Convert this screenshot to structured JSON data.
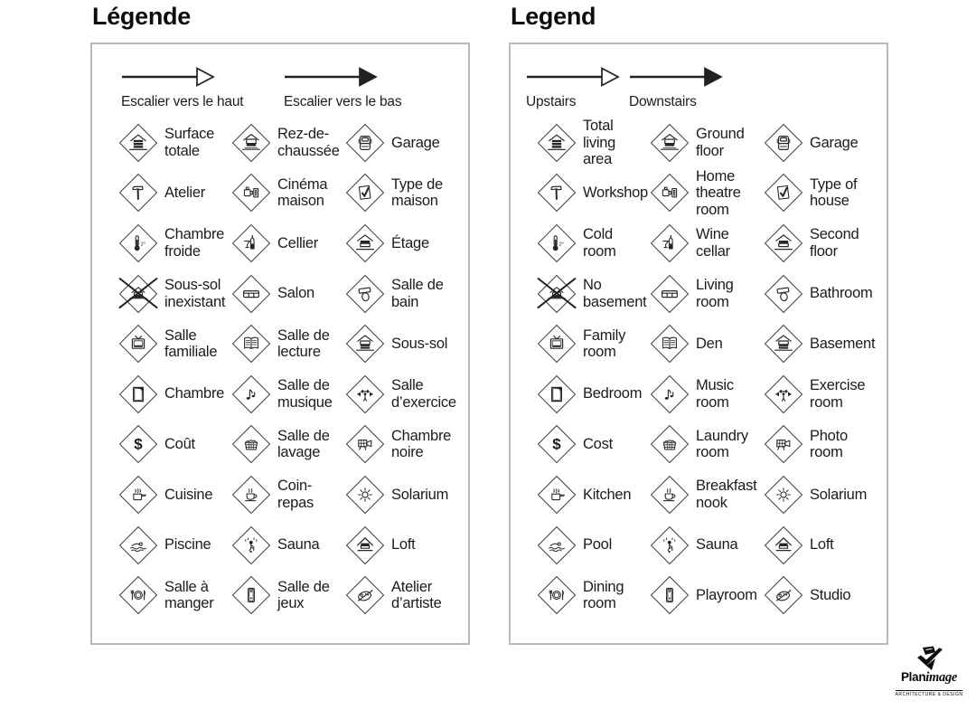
{
  "panels": [
    {
      "id": "french",
      "title": "Légende",
      "arrows": [
        {
          "label": "Escalier vers le haut",
          "style": "hollow"
        },
        {
          "label": "Escalier vers le bas",
          "style": "filled"
        }
      ],
      "items": [
        {
          "icon": "total-living-area",
          "label": "Surface\ntotale"
        },
        {
          "icon": "ground-floor",
          "label": "Rez-de-\nchaussée"
        },
        {
          "icon": "garage",
          "label": "Garage"
        },
        {
          "icon": "workshop",
          "label": "Atelier"
        },
        {
          "icon": "home-theatre",
          "label": "Cinéma\nmaison"
        },
        {
          "icon": "type-of-house",
          "label": "Type de\nmaison"
        },
        {
          "icon": "cold-room",
          "label": "Chambre\nfroide"
        },
        {
          "icon": "wine-cellar",
          "label": "Cellier"
        },
        {
          "icon": "second-floor",
          "label": "Étage"
        },
        {
          "icon": "no-basement",
          "label": "Sous-sol\ninexistant"
        },
        {
          "icon": "living-room",
          "label": "Salon"
        },
        {
          "icon": "bathroom",
          "label": "Salle de\nbain"
        },
        {
          "icon": "family-room",
          "label": "Salle\nfamiliale"
        },
        {
          "icon": "den",
          "label": "Salle de\nlecture"
        },
        {
          "icon": "basement",
          "label": "Sous-sol"
        },
        {
          "icon": "bedroom",
          "label": "Chambre"
        },
        {
          "icon": "music-room",
          "label": "Salle de\nmusique"
        },
        {
          "icon": "exercise-room",
          "label": "Salle\nd’exercice"
        },
        {
          "icon": "cost",
          "label": "Coût"
        },
        {
          "icon": "laundry-room",
          "label": "Salle de\nlavage"
        },
        {
          "icon": "photo-room",
          "label": "Chambre\nnoire"
        },
        {
          "icon": "kitchen",
          "label": "Cuisine"
        },
        {
          "icon": "breakfast-nook",
          "label": "Coin-\nrepas"
        },
        {
          "icon": "solarium",
          "label": "Solarium"
        },
        {
          "icon": "pool",
          "label": "Piscine"
        },
        {
          "icon": "sauna",
          "label": "Sauna"
        },
        {
          "icon": "loft",
          "label": "Loft"
        },
        {
          "icon": "dining-room",
          "label": "Salle à\nmanger"
        },
        {
          "icon": "playroom",
          "label": "Salle de\njeux"
        },
        {
          "icon": "studio",
          "label": "Atelier\nd’artiste"
        }
      ]
    },
    {
      "id": "english",
      "title": "Legend",
      "arrows": [
        {
          "label": "Upstairs",
          "style": "hollow"
        },
        {
          "label": "Downstairs",
          "style": "filled"
        }
      ],
      "items": [
        {
          "icon": "total-living-area",
          "label": "Total\nliving\narea"
        },
        {
          "icon": "ground-floor",
          "label": "Ground\nfloor"
        },
        {
          "icon": "garage",
          "label": "Garage"
        },
        {
          "icon": "workshop",
          "label": "Workshop"
        },
        {
          "icon": "home-theatre",
          "label": "Home\ntheatre\nroom"
        },
        {
          "icon": "type-of-house",
          "label": "Type of\nhouse"
        },
        {
          "icon": "cold-room",
          "label": "Cold\nroom"
        },
        {
          "icon": "wine-cellar",
          "label": "Wine\ncellar"
        },
        {
          "icon": "second-floor",
          "label": "Second\nfloor"
        },
        {
          "icon": "no-basement",
          "label": "No\nbasement"
        },
        {
          "icon": "living-room",
          "label": "Living\nroom"
        },
        {
          "icon": "bathroom",
          "label": "Bathroom"
        },
        {
          "icon": "family-room",
          "label": "Family\nroom"
        },
        {
          "icon": "den",
          "label": "Den"
        },
        {
          "icon": "basement",
          "label": "Basement"
        },
        {
          "icon": "bedroom",
          "label": "Bedroom"
        },
        {
          "icon": "music-room",
          "label": "Music\nroom"
        },
        {
          "icon": "exercise-room",
          "label": "Exercise\nroom"
        },
        {
          "icon": "cost",
          "label": "Cost"
        },
        {
          "icon": "laundry-room",
          "label": "Laundry\nroom"
        },
        {
          "icon": "photo-room",
          "label": "Photo\nroom"
        },
        {
          "icon": "kitchen",
          "label": "Kitchen"
        },
        {
          "icon": "breakfast-nook",
          "label": "Breakfast\nnook"
        },
        {
          "icon": "solarium",
          "label": "Solarium"
        },
        {
          "icon": "pool",
          "label": "Pool"
        },
        {
          "icon": "sauna",
          "label": "Sauna"
        },
        {
          "icon": "loft",
          "label": "Loft"
        },
        {
          "icon": "dining-room",
          "label": "Dining\nroom"
        },
        {
          "icon": "playroom",
          "label": "Playroom"
        },
        {
          "icon": "studio",
          "label": "Studio"
        }
      ]
    }
  ],
  "logo": {
    "brand_bold": "Plan",
    "brand_italic": "image",
    "tagline": "ARCHITECTURE & DESIGN"
  },
  "colors": {
    "ink": "#1c1c1c",
    "panel_border": "#b9b9b9",
    "background": "#ffffff"
  }
}
